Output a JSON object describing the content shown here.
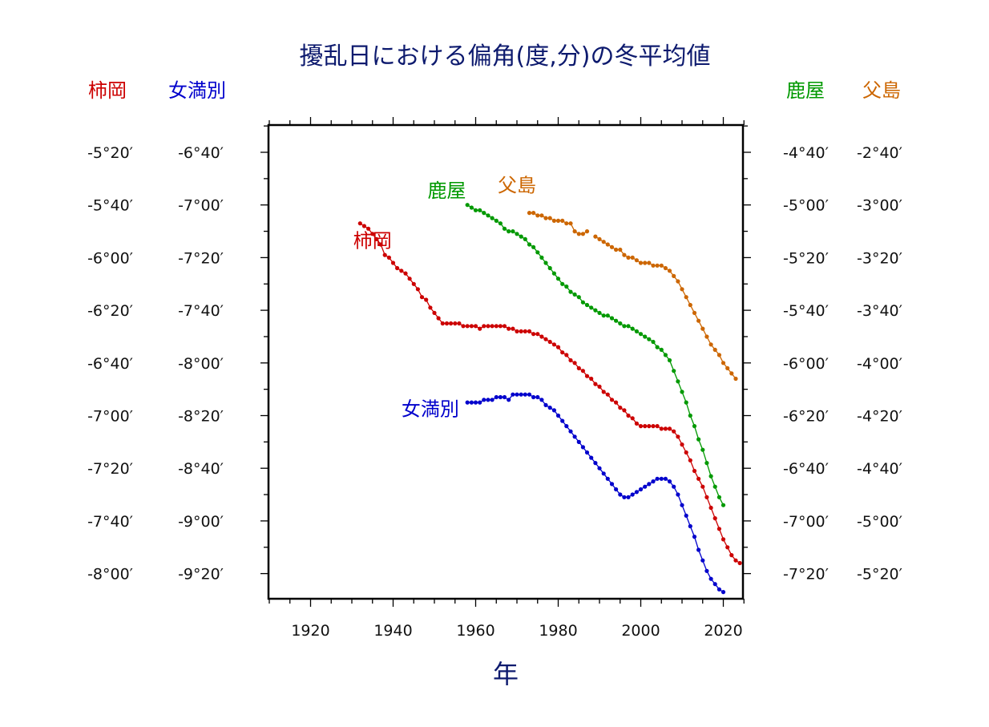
{
  "chart_data": {
    "type": "line",
    "title": "擾乱日における偏角(度,分)の冬平均値",
    "xlabel": "年",
    "xlim": [
      1910,
      2025
    ],
    "xticks": [
      "1920",
      "1940",
      "1960",
      "1980",
      "2000",
      "2020"
    ],
    "grid": false,
    "axis_labels": {
      "left_outer": "柿岡",
      "left_inner": "女満別",
      "right_inner": "鹿屋",
      "right_outer": "父島"
    },
    "tick_labels": {
      "left_outer": [
        "-5°20′",
        "-5°40′",
        "-6°00′",
        "-6°20′",
        "-6°40′",
        "-7°00′",
        "-7°20′",
        "-7°40′",
        "-8°00′"
      ],
      "left_inner": [
        "-6°40′",
        "-7°00′",
        "-7°20′",
        "-7°40′",
        "-8°00′",
        "-8°20′",
        "-8°40′",
        "-9°00′",
        "-9°20′"
      ],
      "right_inner": [
        "-4°40′",
        "-5°00′",
        "-5°20′",
        "-5°40′",
        "-6°00′",
        "-6°20′",
        "-6°40′",
        "-7°00′",
        "-7°20′"
      ],
      "right_outer": [
        "-2°40′",
        "-3°00′",
        "-3°20′",
        "-3°40′",
        "-4°00′",
        "-4°20′",
        "-4°40′",
        "-5°00′",
        "-5°20′"
      ]
    },
    "series": [
      {
        "name": "柿岡",
        "axis": "left_outer",
        "color": "#cc0000",
        "label": {
          "text": "柿岡",
          "x": 1935,
          "y": -356
        },
        "start_year": 1932,
        "values": [
          -347,
          -348,
          -349,
          -351,
          -353,
          -355,
          -359,
          -360,
          -362,
          -364,
          -365,
          -366,
          -368,
          -370,
          -372,
          -375,
          -376,
          -379,
          -381,
          -383,
          -385,
          -385,
          -385,
          -385,
          -385,
          -386,
          -386,
          -386,
          -386,
          -387,
          -386,
          -386,
          -386,
          -386,
          -386,
          -386,
          -387,
          -387,
          -388,
          -388,
          -388,
          -388,
          -389,
          -389,
          -390,
          -391,
          -392,
          -393,
          -394,
          -396,
          -397,
          -399,
          -400,
          -402,
          -403,
          -405,
          -406,
          -408,
          -409,
          -411,
          -412,
          -414,
          -415,
          -417,
          -418,
          -420,
          -421,
          -423,
          -424,
          -424,
          -424,
          -424,
          -424,
          -425,
          -425,
          -425,
          -426,
          -428,
          -431,
          -434,
          -437,
          -441,
          -444,
          -447,
          -451,
          -455,
          -459,
          -463,
          -467,
          -470,
          -473,
          -475,
          -476
        ]
      },
      {
        "name": "女満別",
        "axis": "left_inner",
        "color": "#0000cc",
        "label": {
          "text": "女満別",
          "x": 1949,
          "y": -500
        },
        "start_year": 1958,
        "values": [
          -495,
          -495,
          -495,
          -495,
          -494,
          -494,
          -494,
          -493,
          -493,
          -493,
          -494,
          -492,
          -492,
          -492,
          -492,
          -492,
          -493,
          -493,
          -494,
          -496,
          -497,
          -498,
          -500,
          -502,
          -504,
          -506,
          -508,
          -510,
          -512,
          -514,
          -516,
          -518,
          -520,
          -522,
          -524,
          -526,
          -528,
          -530,
          -531,
          -531,
          -530,
          -529,
          -528,
          -527,
          -526,
          -525,
          -524,
          -524,
          -524,
          -525,
          -527,
          -530,
          -534,
          -538,
          -542,
          -546,
          -551,
          -555,
          -559,
          -562,
          -564,
          -566,
          -567
        ]
      },
      {
        "name": "鹿屋",
        "axis": "right_inner",
        "color": "#009900",
        "label": {
          "text": "鹿屋",
          "x": 1953,
          "y": -297
        },
        "start_year": 1958,
        "values": [
          -300,
          -301,
          -302,
          -302,
          -303,
          -304,
          -305,
          -306,
          -307,
          -309,
          -310,
          -310,
          -311,
          -312,
          -313,
          -315,
          -316,
          -318,
          -320,
          -322,
          -324,
          -326,
          -328,
          -330,
          -331,
          -333,
          -334,
          -335,
          -337,
          -338,
          -339,
          -340,
          -341,
          -342,
          -342,
          -343,
          -344,
          -345,
          -346,
          -346,
          -347,
          -348,
          -349,
          -350,
          -351,
          -352,
          -354,
          -355,
          -357,
          -359,
          -363,
          -367,
          -371,
          -375,
          -380,
          -384,
          -389,
          -393,
          -398,
          -403,
          -407,
          -411,
          -414
        ]
      },
      {
        "name": "父島",
        "axis": "right_outer",
        "color": "#cc6600",
        "label": {
          "text": "父島",
          "x": 1970,
          "y": -175
        },
        "segments": [
          {
            "start_year": 1973,
            "values": [
              -183,
              -183,
              -184,
              -184,
              -185,
              -185,
              -186,
              -186,
              -186,
              -187,
              -187,
              -190,
              -191,
              -191,
              -190
            ]
          },
          {
            "start_year": 1989,
            "values": [
              -192,
              -193,
              -194,
              -195,
              -196,
              -197,
              -197,
              -199,
              -200,
              -200,
              -201,
              -202,
              -202,
              -202,
              -203,
              -203,
              -203,
              -204,
              -205,
              -207,
              -209,
              -212,
              -215,
              -218,
              -221,
              -224,
              -227,
              -230,
              -233,
              -235,
              -237,
              -240,
              -242,
              -244,
              -246
            ]
          }
        ]
      }
    ]
  }
}
